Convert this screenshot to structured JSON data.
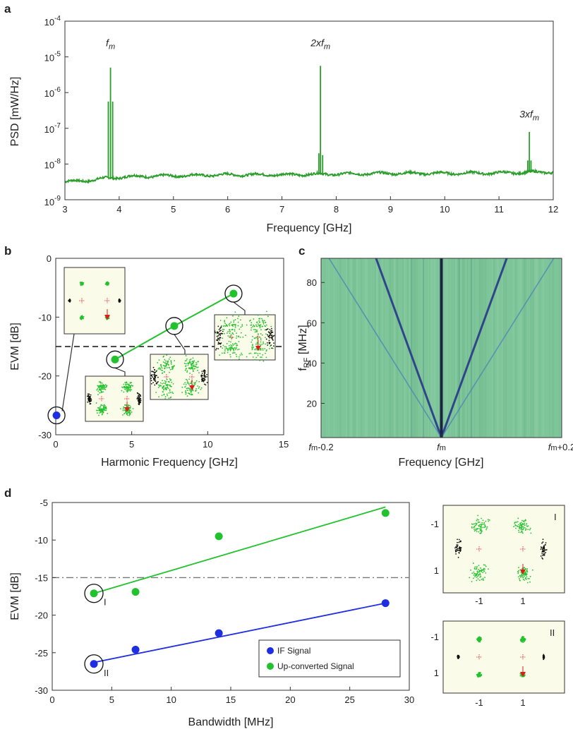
{
  "colors": {
    "green": "#2a9d2a",
    "bright_green": "#22c22e",
    "blue": "#1f2ee0",
    "dashed": "#111111",
    "dashdot": "#777777",
    "heatmap_bg": "#7fc59a",
    "constellation_bg": "#fbfbe9",
    "red": "#e01b1b"
  },
  "chart_data": [
    {
      "panel": "a",
      "type": "line",
      "xlabel": "Frequency [GHz]",
      "ylabel": "PSD [mW/Hz]",
      "xlim": [
        3,
        12
      ],
      "ylim_log10": [
        -9,
        -4
      ],
      "y_scale": "log",
      "xticks": [
        "3",
        "4",
        "5",
        "6",
        "7",
        "8",
        "9",
        "10",
        "11",
        "12"
      ],
      "yticks": [
        {
          "base": "10",
          "exp": "-9",
          "value": -9
        },
        {
          "base": "10",
          "exp": "-8",
          "value": -8
        },
        {
          "base": "10",
          "exp": "-7",
          "value": -7
        },
        {
          "base": "10",
          "exp": "-6",
          "value": -6
        },
        {
          "base": "10",
          "exp": "-5",
          "value": -5
        },
        {
          "base": "10",
          "exp": "-4",
          "value": -4
        }
      ],
      "noise_floor": {
        "x": [
          3.0,
          3.5,
          3.75,
          4.2,
          5.0,
          6.0,
          7.0,
          8.0,
          9.0,
          10.0,
          11.0,
          12.0
        ],
        "log10_y": [
          -8.5,
          -8.45,
          -8.4,
          -8.35,
          -8.33,
          -8.3,
          -8.3,
          -8.28,
          -8.26,
          -8.26,
          -8.25,
          -8.22
        ]
      },
      "peaks": [
        {
          "x": 3.8,
          "log10_y": -6.25
        },
        {
          "x": 3.84,
          "log10_y": -5.3
        },
        {
          "x": 3.88,
          "log10_y": -6.25
        },
        {
          "x": 7.68,
          "log10_y": -7.7
        },
        {
          "x": 7.71,
          "log10_y": -5.25
        },
        {
          "x": 7.75,
          "log10_y": -7.75
        },
        {
          "x": 11.53,
          "log10_y": -7.9
        },
        {
          "x": 11.56,
          "log10_y": -7.1
        },
        {
          "x": 11.59,
          "log10_y": -7.9
        }
      ],
      "annotations": [
        {
          "text": "f",
          "sub": "m",
          "x": 3.84,
          "log10_y": -4.7
        },
        {
          "text": "2xf",
          "sub": "m",
          "x": 7.71,
          "log10_y": -4.7
        },
        {
          "text": "3xf",
          "sub": "m",
          "x": 11.56,
          "log10_y": -6.7
        }
      ]
    },
    {
      "panel": "b",
      "type": "line",
      "xlabel": "Harmonic Frequency [GHz]",
      "ylabel": "EVM [dB]",
      "xlim": [
        0,
        15
      ],
      "ylim": [
        -30,
        0
      ],
      "xticks": [
        "0",
        "5",
        "10",
        "15"
      ],
      "yticks": [
        "0",
        "-10",
        "-20",
        "-30"
      ],
      "threshold": -15,
      "series": [
        {
          "color_key": "blue",
          "x": [
            0.05
          ],
          "y": [
            -26.7
          ]
        },
        {
          "color_key": "bright_green",
          "x": [
            3.9,
            7.8,
            11.7
          ],
          "y": [
            -17.2,
            -11.5,
            -6
          ]
        }
      ]
    },
    {
      "panel": "c",
      "type": "heatmap",
      "xlabel": "Frequency [GHz]",
      "ylabel": "f",
      "ylabel_sub": "RF",
      "ylabel_unit": " [MHz]",
      "xticks": [
        {
          "text": "f",
          "sub": "m",
          "suffix": "-0.2",
          "value": -0.2
        },
        {
          "text": "f",
          "sub": "m",
          "suffix": "",
          "value": 0
        },
        {
          "text": "f",
          "sub": "m",
          "suffix": "+0.2",
          "value": 0.2
        }
      ],
      "xlim": [
        -0.2,
        0.2
      ],
      "ylim": [
        3,
        92
      ],
      "yticks": [
        "20",
        "40",
        "60",
        "80"
      ],
      "lines": [
        {
          "name": "first-order",
          "slope_offset_per_mhz": 0.00122,
          "strength": "strong"
        },
        {
          "name": "second-order",
          "slope_offset_per_mhz": 0.0021,
          "strength": "weak"
        }
      ]
    },
    {
      "panel": "d",
      "type": "scatter",
      "xlabel": "Bandwidth [MHz]",
      "ylabel": "EVM [dB]",
      "xlim": [
        0,
        30
      ],
      "ylim": [
        -30,
        -5
      ],
      "xticks": [
        "0",
        "5",
        "10",
        "15",
        "20",
        "25",
        "30"
      ],
      "yticks": [
        "-5",
        "-10",
        "-15",
        "-20",
        "-25",
        "-30"
      ],
      "threshold": -15,
      "legend_position": "bottom-right",
      "series": [
        {
          "name": "IF Signal",
          "color_key": "blue",
          "x": [
            3.5,
            7,
            14,
            28
          ],
          "y": [
            -26.5,
            -24.6,
            -22.4,
            -18.4
          ],
          "fit": [
            [
              3.5,
              -26.3
            ],
            [
              28,
              -18.4
            ]
          ]
        },
        {
          "name": "Up-converted Signal",
          "color_key": "bright_green",
          "x": [
            3.5,
            7,
            14,
            28
          ],
          "y": [
            -17.1,
            -16.9,
            -9.5,
            -6.4
          ],
          "fit": [
            [
              3.5,
              -17.1
            ],
            [
              28,
              -5.6
            ]
          ]
        }
      ],
      "markers": [
        {
          "label": "I",
          "x": 3.5,
          "y": -17.1
        },
        {
          "label": "II",
          "x": 3.5,
          "y": -26.5
        }
      ]
    }
  ],
  "panel_letters": {
    "a": "a",
    "b": "b",
    "c": "c",
    "d": "d"
  },
  "constellations": {
    "label_I": "I",
    "label_II": "II",
    "ticks": [
      "-1",
      "1",
      "-1",
      "1",
      "-1",
      "1",
      "-1",
      "1"
    ]
  }
}
